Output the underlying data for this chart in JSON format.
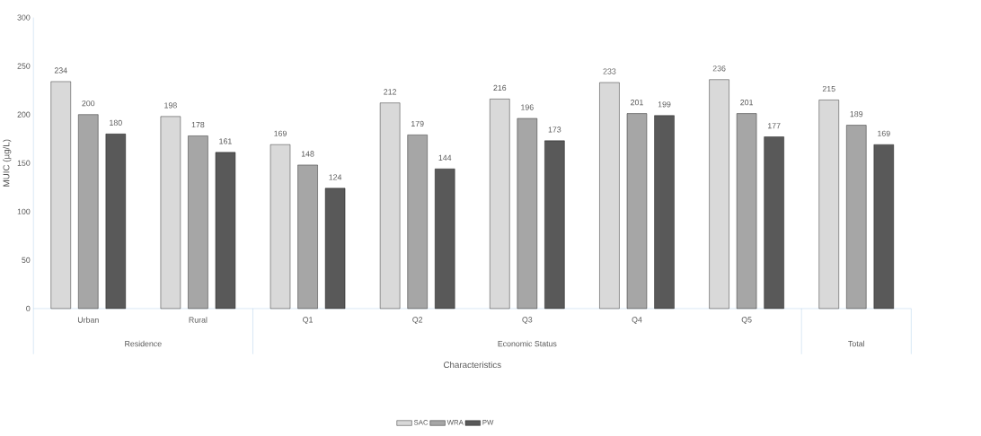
{
  "chart_data": {
    "type": "bar",
    "xlabel": "Characteristics",
    "ylabel": "MUIC (µg/L)",
    "categories": [
      "Urban",
      "Rural",
      "Q1",
      "Q2",
      "Q3",
      "Q4",
      "Q5",
      null
    ],
    "series": [
      {
        "name": "SAC",
        "color": "#d9d9d9",
        "values": [
          234,
          198,
          169,
          212,
          216,
          233,
          236,
          215
        ]
      },
      {
        "name": "WRA",
        "color": "#a6a6a6",
        "values": [
          200,
          178,
          148,
          179,
          196,
          201,
          201,
          189
        ]
      },
      {
        "name": "PW",
        "color": "#595959",
        "values": [
          180,
          161,
          124,
          144,
          173,
          199,
          177,
          169
        ]
      }
    ],
    "ylim": [
      0,
      300
    ],
    "yticks": [
      0,
      50,
      100,
      150,
      200,
      250,
      300
    ],
    "data_labels": true,
    "legend": "bottom",
    "annotations": [
      "Residence",
      "Economic Status",
      "Total"
    ]
  }
}
